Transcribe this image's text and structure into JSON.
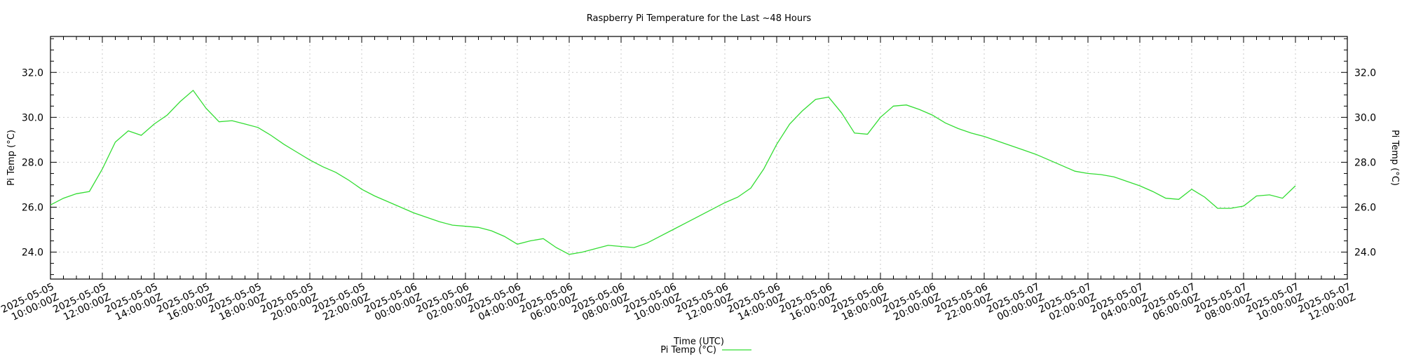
{
  "chart_data": {
    "type": "line",
    "title": "Raspberry Pi Temperature for the Last ~48 Hours",
    "xlabel": "Time (UTC)",
    "ylabel": "Pi Temp (°C)",
    "ylabel_right": "Pi Temp (°C)",
    "grid": true,
    "legend_position": "bottom-center",
    "ylim": [
      22.8,
      33.6
    ],
    "yticks": [
      24.0,
      26.0,
      28.0,
      30.0,
      32.0
    ],
    "ytick_labels": [
      "24.0",
      "26.0",
      "28.0",
      "30.0",
      "32.0"
    ],
    "xlim": [
      0,
      50
    ],
    "xticks": [
      0,
      2,
      4,
      6,
      8,
      10,
      12,
      14,
      16,
      18,
      20,
      22,
      24,
      26,
      28,
      30,
      32,
      34,
      36,
      38,
      40,
      42,
      44,
      46,
      48,
      50
    ],
    "xtick_labels": [
      [
        "2025-05-05",
        "10:00:00Z"
      ],
      [
        "2025-05-05",
        "12:00:00Z"
      ],
      [
        "2025-05-05",
        "14:00:00Z"
      ],
      [
        "2025-05-05",
        "16:00:00Z"
      ],
      [
        "2025-05-05",
        "18:00:00Z"
      ],
      [
        "2025-05-05",
        "20:00:00Z"
      ],
      [
        "2025-05-05",
        "22:00:00Z"
      ],
      [
        "2025-05-06",
        "00:00:00Z"
      ],
      [
        "2025-05-06",
        "02:00:00Z"
      ],
      [
        "2025-05-06",
        "04:00:00Z"
      ],
      [
        "2025-05-06",
        "06:00:00Z"
      ],
      [
        "2025-05-06",
        "08:00:00Z"
      ],
      [
        "2025-05-06",
        "10:00:00Z"
      ],
      [
        "2025-05-06",
        "12:00:00Z"
      ],
      [
        "2025-05-06",
        "14:00:00Z"
      ],
      [
        "2025-05-06",
        "16:00:00Z"
      ],
      [
        "2025-05-06",
        "18:00:00Z"
      ],
      [
        "2025-05-06",
        "20:00:00Z"
      ],
      [
        "2025-05-06",
        "22:00:00Z"
      ],
      [
        "2025-05-07",
        "00:00:00Z"
      ],
      [
        "2025-05-07",
        "02:00:00Z"
      ],
      [
        "2025-05-07",
        "04:00:00Z"
      ],
      [
        "2025-05-07",
        "06:00:00Z"
      ],
      [
        "2025-05-07",
        "08:00:00Z"
      ],
      [
        "2025-05-07",
        "10:00:00Z"
      ],
      [
        "2025-05-07",
        "12:00:00Z"
      ]
    ],
    "series": [
      {
        "name": "Pi Temp (°C)",
        "color": "#33dd33",
        "x": [
          0.0,
          0.5,
          1.0,
          1.5,
          2.0,
          2.5,
          3.0,
          3.5,
          4.0,
          4.5,
          5.0,
          5.5,
          6.0,
          6.5,
          7.0,
          7.5,
          8.0,
          8.5,
          9.0,
          9.5,
          10.0,
          10.5,
          11.0,
          11.5,
          12.0,
          12.5,
          13.0,
          13.5,
          14.0,
          14.5,
          15.0,
          15.5,
          16.0,
          16.5,
          17.0,
          17.5,
          18.0,
          18.5,
          19.0,
          19.5,
          20.0,
          20.5,
          21.0,
          21.5,
          22.0,
          22.5,
          23.0,
          23.5,
          24.0,
          24.5,
          25.0,
          25.5,
          26.0,
          26.5,
          27.0,
          27.5,
          28.0,
          28.5,
          29.0,
          29.5,
          30.0,
          30.5,
          31.0,
          31.5,
          32.0,
          32.5,
          33.0,
          33.5,
          34.0,
          34.5,
          35.0,
          35.5,
          36.0,
          36.5,
          37.0,
          37.5,
          38.0,
          38.5,
          39.0,
          39.5,
          40.0,
          40.5,
          41.0,
          41.5,
          42.0,
          42.5,
          43.0,
          43.5,
          44.0,
          44.5,
          45.0,
          45.5,
          46.0,
          46.5,
          47.0,
          47.5,
          48.0
        ],
        "values": [
          26.1,
          26.4,
          26.6,
          26.7,
          27.7,
          28.9,
          29.4,
          29.2,
          29.7,
          30.1,
          30.7,
          31.2,
          30.4,
          29.8,
          29.85,
          29.7,
          29.55,
          29.2,
          28.8,
          28.45,
          28.1,
          27.8,
          27.55,
          27.2,
          26.8,
          26.5,
          26.25,
          26.0,
          25.75,
          25.55,
          25.35,
          25.2,
          25.15,
          25.1,
          24.95,
          24.7,
          24.35,
          24.5,
          24.6,
          24.2,
          23.9,
          24.0,
          24.15,
          24.3,
          24.25,
          24.2,
          24.4,
          24.7,
          25.0,
          25.3,
          25.6,
          25.9,
          26.2,
          26.45,
          26.85,
          27.7,
          28.8,
          29.7,
          30.3,
          30.8,
          30.9,
          30.2,
          29.3,
          29.25,
          30.0,
          30.5,
          30.55,
          30.35,
          30.1,
          29.75,
          29.5,
          29.3,
          29.15,
          28.95,
          28.75,
          28.55,
          28.35,
          28.1,
          27.85,
          27.6,
          27.5,
          27.45,
          27.35,
          27.15,
          26.95,
          26.7,
          26.4,
          26.35,
          26.8,
          26.45,
          25.95,
          25.95,
          26.05,
          26.5,
          26.55,
          26.4,
          26.95
        ]
      }
    ]
  }
}
